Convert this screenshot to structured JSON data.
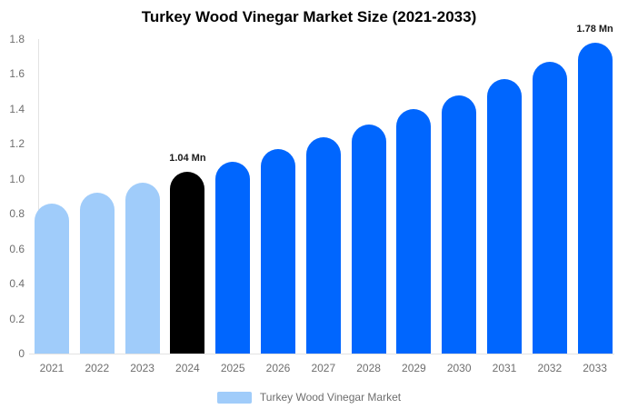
{
  "chart_data": {
    "type": "bar",
    "title": "Turkey Wood Vinegar Market Size (2021-2033)",
    "unit": "Mn",
    "categories": [
      "2021",
      "2022",
      "2023",
      "2024",
      "2025",
      "2026",
      "2027",
      "2028",
      "2029",
      "2030",
      "2031",
      "2032",
      "2033"
    ],
    "values": [
      0.86,
      0.92,
      0.98,
      1.04,
      1.1,
      1.17,
      1.24,
      1.31,
      1.4,
      1.48,
      1.57,
      1.67,
      1.78
    ],
    "bar_colors": [
      "#a0ccfa",
      "#a0ccfa",
      "#a0ccfa",
      "#000000",
      "#0066fe",
      "#0066fe",
      "#0066fe",
      "#0066fe",
      "#0066fe",
      "#0066fe",
      "#0066fe",
      "#0066fe",
      "#0066fe"
    ],
    "annotations": [
      {
        "category": "2024",
        "text": "1.04 Mn"
      },
      {
        "category": "2033",
        "text": "1.78 Mn"
      }
    ],
    "ylim": [
      0,
      1.8
    ],
    "ytick_labels": [
      "0",
      "0.2",
      "0.4",
      "0.6",
      "0.8",
      "1.0",
      "1.2",
      "1.4",
      "1.6",
      "1.8"
    ],
    "grid": "off",
    "legend_position": "bottom",
    "legend": [
      {
        "label": "Turkey Wood Vinegar Market",
        "color": "#a0ccfa"
      }
    ],
    "colors": {
      "past_bar": "#a0ccfa",
      "base_year_bar": "#000000",
      "forecast_bar": "#0066fe",
      "axis": "#e2e2e2",
      "tick_text": "#6e6e6e",
      "annotation_text": "#1a1a1a"
    }
  }
}
